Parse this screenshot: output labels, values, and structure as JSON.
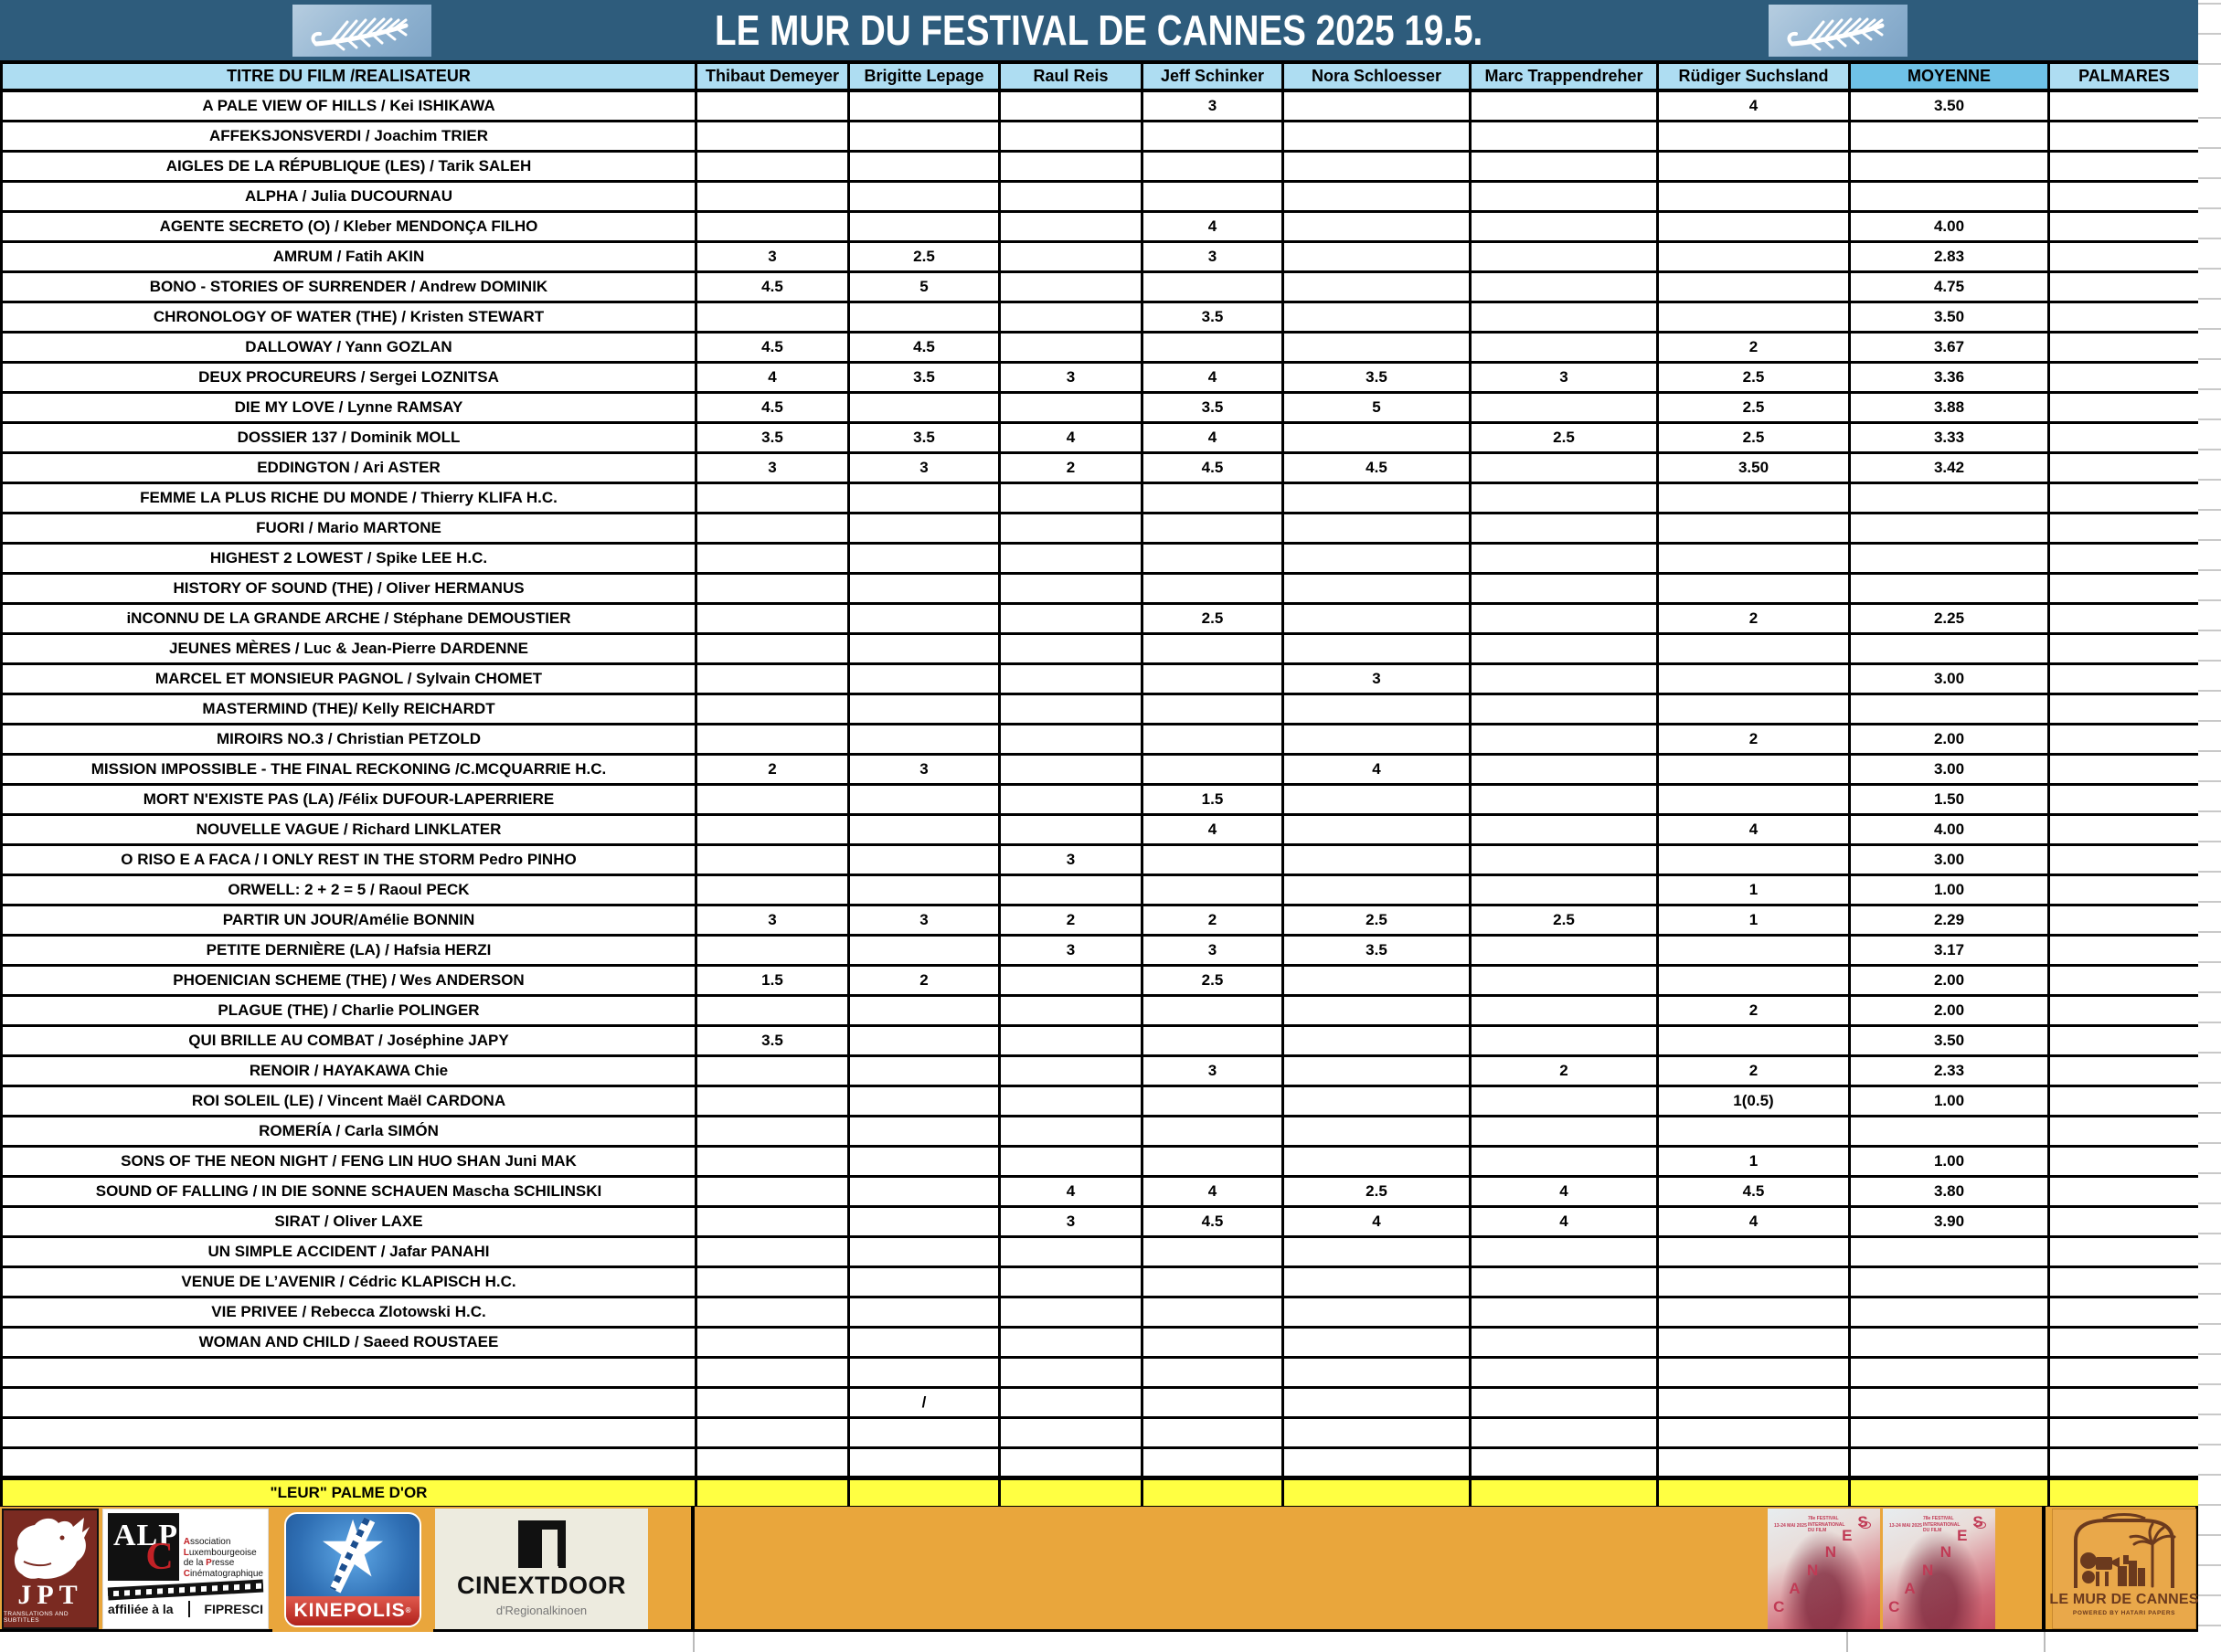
{
  "header": {
    "title": "LE MUR DU FESTIVAL DE CANNES 2025  19.5."
  },
  "table": {
    "columns": [
      "TITRE DU FILM /REALISATEUR",
      "Thibaut Demeyer",
      "Brigitte Lepage",
      "Raul Reis",
      "Jeff Schinker",
      "Nora Schloesser",
      "Marc Trappendreher",
      "Rüdiger Suchsland",
      "MOYENNE",
      "PALMARES"
    ],
    "rows": [
      {
        "title": "A PALE VIEW OF HILLS  / Kei ISHIKAWA",
        "status": "rated",
        "ratings": [
          "",
          "",
          "",
          "3",
          "",
          "",
          "4"
        ],
        "average": "3.50"
      },
      {
        "title": "AFFEKSJONSVERDI / Joachim TRIER",
        "status": "unrated",
        "ratings": [],
        "average": ""
      },
      {
        "title": "AIGLES DE LA RÉPUBLIQUE (LES) / Tarik SALEH",
        "status": "unrated",
        "ratings": [],
        "average": ""
      },
      {
        "title": "ALPHA / Julia DUCOURNAU",
        "status": "unrated",
        "ratings": [],
        "average": ""
      },
      {
        "title": "AGENTE SECRETO (O) / Kleber MENDONÇA FILHO",
        "status": "rated",
        "ratings": [
          "",
          "",
          "",
          "4",
          "",
          "",
          ""
        ],
        "average": "4.00"
      },
      {
        "title": "AMRUM / Fatih AKIN",
        "status": "rated",
        "ratings": [
          "3",
          "2.5",
          "",
          "3",
          "",
          "",
          ""
        ],
        "average": "2.83"
      },
      {
        "title": "BONO - STORIES OF SURRENDER / Andrew DOMINIK",
        "status": "rated",
        "ratings": [
          "4.5",
          "5",
          "",
          "",
          "",
          "",
          ""
        ],
        "average": "4.75"
      },
      {
        "title": "CHRONOLOGY OF WATER (THE) / Kristen STEWART",
        "status": "rated",
        "ratings": [
          "",
          "",
          "",
          "3.5",
          "",
          "",
          ""
        ],
        "average": "3.50"
      },
      {
        "title": "DALLOWAY / Yann GOZLAN",
        "status": "rated",
        "ratings": [
          "4.5",
          "4.5",
          "",
          "",
          "",
          "",
          "2"
        ],
        "average": "3.67"
      },
      {
        "title": "DEUX PROCUREURS / Sergei LOZNITSA",
        "status": "rated",
        "ratings": [
          "4",
          "3.5",
          "3",
          "4",
          "3.5",
          "3",
          "2.5"
        ],
        "average": "3.36"
      },
      {
        "title": "DIE MY LOVE / Lynne RAMSAY",
        "status": "rated",
        "ratings": [
          "4.5",
          "",
          "",
          "3.5",
          "5",
          "",
          "2.5"
        ],
        "average": "3.88"
      },
      {
        "title": "DOSSIER 137 / Dominik MOLL",
        "status": "rated",
        "ratings": [
          "3.5",
          "3.5",
          "4",
          "4",
          "",
          "2.5",
          "2.5"
        ],
        "average": "3.33"
      },
      {
        "title": "EDDINGTON / Ari ASTER",
        "status": "rated",
        "ratings": [
          "3",
          "3",
          "2",
          "4.5",
          "4.5",
          "",
          "3.50"
        ],
        "average": "3.42"
      },
      {
        "title": "FEMME LA PLUS RICHE DU MONDE / Thierry KLIFA H.C.",
        "status": "unrated",
        "ratings": [],
        "average": ""
      },
      {
        "title": "FUORI / Mario MARTONE",
        "status": "unrated",
        "ratings": [],
        "average": ""
      },
      {
        "title": "HIGHEST 2 LOWEST / Spike LEE H.C.",
        "status": "unrated",
        "ratings": [],
        "average": ""
      },
      {
        "title": "HISTORY OF SOUND (THE) / Oliver HERMANUS",
        "status": "unrated",
        "ratings": [],
        "average": ""
      },
      {
        "title": "iNCONNU DE LA GRANDE ARCHE / Stéphane DEMOUSTIER",
        "status": "rated",
        "ratings": [
          "",
          "",
          "",
          "2.5",
          "",
          "",
          "2"
        ],
        "average": "2.25"
      },
      {
        "title": "JEUNES MÈRES / Luc & Jean-Pierre DARDENNE",
        "status": "unrated",
        "ratings": [],
        "average": ""
      },
      {
        "title": "MARCEL ET MONSIEUR PAGNOL / Sylvain CHOMET",
        "status": "rated",
        "ratings": [
          "",
          "",
          "",
          "",
          "3",
          "",
          ""
        ],
        "average": "3.00"
      },
      {
        "title": "MASTERMIND (THE)/ Kelly REICHARDT",
        "status": "unrated",
        "ratings": [],
        "average": ""
      },
      {
        "title": "MIROIRS NO.3 / Christian PETZOLD",
        "status": "rated",
        "ratings": [
          "",
          "",
          "",
          "",
          "",
          "",
          "2"
        ],
        "average": "2.00"
      },
      {
        "title": "MISSION IMPOSSIBLE - THE FINAL RECKONING /C.MCQUARRIE H.C.",
        "status": "rated",
        "ratings": [
          "2",
          "3",
          "",
          "",
          "4",
          "",
          ""
        ],
        "average": "3.00"
      },
      {
        "title": "MORT N'EXISTE PAS (LA) /Félix DUFOUR-LAPERRIERE",
        "status": "rated",
        "ratings": [
          "",
          "",
          "",
          "1.5",
          "",
          "",
          ""
        ],
        "average": "1.50"
      },
      {
        "title": "NOUVELLE VAGUE / Richard LINKLATER",
        "status": "rated",
        "ratings": [
          "",
          "",
          "",
          "4",
          "",
          "",
          "4"
        ],
        "average": "4.00"
      },
      {
        "title": "O RISO E A FACA / I ONLY REST IN THE STORM Pedro PINHO",
        "status": "rated",
        "ratings": [
          "",
          "",
          "3",
          "",
          "",
          "",
          ""
        ],
        "average": "3.00"
      },
      {
        "title": "ORWELL:  2 + 2 = 5 / Raoul PECK",
        "status": "rated",
        "ratings": [
          "",
          "",
          "",
          "",
          "",
          "",
          "1"
        ],
        "average": "1.00"
      },
      {
        "title": "PARTIR UN JOUR/Amélie BONNIN",
        "status": "rated",
        "ratings": [
          "3",
          "3",
          "2",
          "2",
          "2.5",
          "2.5",
          "1"
        ],
        "average": "2.29"
      },
      {
        "title": "PETITE DERNIÈRE (LA) / Hafsia HERZI",
        "status": "rated",
        "ratings": [
          "",
          "",
          "3",
          "3",
          "3.5",
          "",
          ""
        ],
        "average": "3.17"
      },
      {
        "title": "PHOENICIAN SCHEME (THE) / Wes ANDERSON",
        "status": "rated",
        "ratings": [
          "1.5",
          "2",
          "",
          "2.5",
          "",
          "",
          ""
        ],
        "average": "2.00"
      },
      {
        "title": "PLAGUE (THE) / Charlie POLINGER",
        "status": "rated",
        "ratings": [
          "",
          "",
          "",
          "",
          "",
          "",
          "2"
        ],
        "average": "2.00"
      },
      {
        "title": "QUI BRILLE AU COMBAT / Joséphine JAPY",
        "status": "rated",
        "ratings": [
          "3.5",
          "",
          "",
          "",
          "",
          "",
          ""
        ],
        "average": "3.50"
      },
      {
        "title": "RENOIR / HAYAKAWA Chie",
        "status": "rated",
        "ratings": [
          "",
          "",
          "",
          "3",
          "",
          "2",
          "2"
        ],
        "average": "2.33"
      },
      {
        "title": "ROI SOLEIL (LE) / Vincent Maël CARDONA",
        "status": "rated",
        "ratings": [
          "",
          "",
          "",
          "",
          "",
          "",
          "1(0.5)"
        ],
        "average": "1.00"
      },
      {
        "title": "ROMERÍA / Carla SIMÓN",
        "status": "unrated",
        "ratings": [],
        "average": ""
      },
      {
        "title": "SONS OF THE NEON  NIGHT / FENG LIN HUO SHAN  Juni MAK",
        "status": "rated",
        "ratings": [
          "",
          "",
          "",
          "",
          "",
          "",
          "1"
        ],
        "average": "1.00"
      },
      {
        "title": "SOUND OF FALLING / IN DIE SONNE SCHAUEN Mascha SCHILINSKI",
        "status": "rated",
        "ratings": [
          "",
          "",
          "4",
          "4",
          "2.5",
          "4",
          "4.5"
        ],
        "average": "3.80"
      },
      {
        "title": "SIRAT / Oliver LAXE",
        "status": "rated",
        "ratings": [
          "",
          "",
          "3",
          "4.5",
          "4",
          "4",
          "4"
        ],
        "average": "3.90"
      },
      {
        "title": "UN SIMPLE ACCIDENT / Jafar PANAHI",
        "status": "unrated",
        "ratings": [],
        "average": ""
      },
      {
        "title": "VENUE DE L’AVENIR / Cédric KLAPISCH H.C.",
        "status": "unrated",
        "ratings": [],
        "average": ""
      },
      {
        "title": "VIE PRIVEE / Rebecca Zlotowski H.C.",
        "status": "unrated",
        "ratings": [],
        "average": ""
      },
      {
        "title": "WOMAN AND CHILD / Saeed ROUSTAEE",
        "status": "unrated",
        "ratings": [],
        "average": ""
      },
      {
        "title": "",
        "status": "empty",
        "ratings": [],
        "average": ""
      },
      {
        "title": "",
        "status": "empty",
        "ratings": [
          "",
          "/",
          "",
          "",
          "",
          "",
          ""
        ],
        "average": ""
      },
      {
        "title": "",
        "status": "empty",
        "ratings": [],
        "average": ""
      },
      {
        "title": "",
        "status": "empty",
        "ratings": [],
        "average": ""
      },
      {
        "title": "\"LEUR\" PALME D'OR",
        "status": "palme",
        "ratings": [],
        "average": ""
      }
    ]
  },
  "footer": {
    "jpt": {
      "name": "JPT",
      "tagline": "TRANSLATIONS AND SUBTITLES"
    },
    "alpc": {
      "alp": "ALP",
      "c": "C",
      "line1": "Association",
      "line2": "Luxembourgeoise",
      "line3": "de la Presse",
      "line4": "Cinématographique",
      "affiliation": "affiliée à la",
      "fipresci": "FIPRESCI"
    },
    "kinepolis": {
      "name": "KINEPOLIS"
    },
    "cinextdoor": {
      "name": "CINEXTDOOR",
      "sub": "d'Regionalkinoen"
    },
    "poster": {
      "word": "CANNES",
      "festival": "78e FESTIVAL INTERNATIONAL DU FILM",
      "dates": "13-24 MAI 2025"
    },
    "lemur": {
      "title": "LE MUR DE CANNES",
      "sub": "POWERED BY HATARI PAPERS"
    }
  },
  "colors": {
    "banner_blue": "#2E5C7C",
    "header_light_blue": "#AEDDF2",
    "moyenne_blue": "#6FC2E7",
    "rated_yellow": "#FFFF42",
    "unrated_gray": "#E7E7E7",
    "footer_orange": "#E9A63C"
  }
}
